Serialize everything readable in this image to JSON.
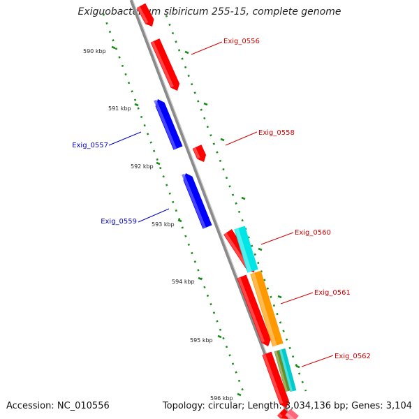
{
  "title": "Exiguobacterium sibiricum 255-15, complete genome",
  "footer": {
    "accession": "Accession: NC_010556",
    "topology": "Topology: circular; Length: 3,034,136 bp; Genes: 3,104"
  },
  "colors": {
    "backbone": "#8a8a8a",
    "tick": "#1a8a1a",
    "forward_label": "#d40000",
    "reverse_label": "#0000c8"
  },
  "ticks": [
    "590 kbp",
    "591 kbp",
    "592 kbp",
    "593 kbp",
    "594 kbp",
    "595 kbp",
    "596 kbp"
  ],
  "genes": [
    {
      "name": "Exig_0556",
      "strand": "forward",
      "color": "#ff0000"
    },
    {
      "name": "Exig_0557",
      "strand": "reverse",
      "color": "#0000ff"
    },
    {
      "name": "Exig_0558",
      "strand": "forward",
      "color": "#ff0000"
    },
    {
      "name": "Exig_0559",
      "strand": "reverse",
      "color": "#0000ff"
    },
    {
      "name": "Exig_0560",
      "strand": "forward",
      "color": "#ff0000"
    },
    {
      "name": "Exig_0561",
      "strand": "forward",
      "color": "#ff0000"
    },
    {
      "name": "Exig_0562",
      "strand": "forward",
      "color": "#ff0000"
    }
  ],
  "features": [
    {
      "name": "cyan-feature",
      "color": "#00e5e5"
    },
    {
      "name": "orange-feature",
      "color": "#ff9900"
    },
    {
      "name": "cyan-feature-2",
      "color": "#00cccc"
    },
    {
      "name": "olive-feature",
      "color": "#6b8e23"
    }
  ]
}
